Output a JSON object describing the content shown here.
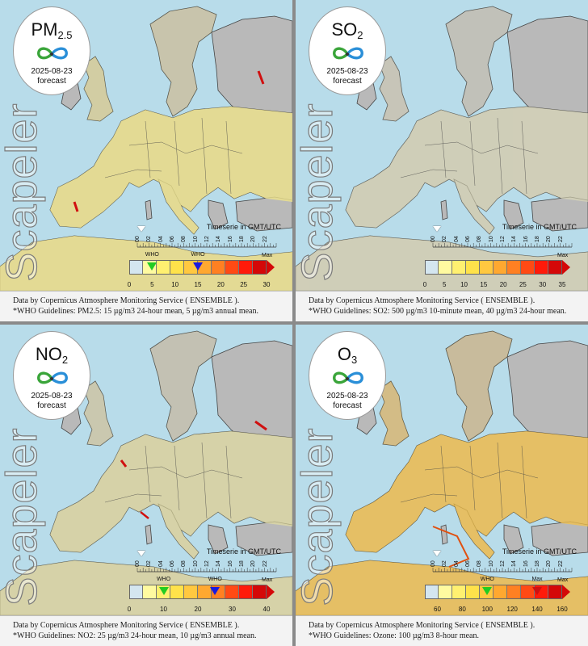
{
  "brand": "Scapeler",
  "date": "2025-08-23",
  "forecast_label": "forecast",
  "timeserie_label": "Timeserie in GMT/UTC",
  "who_label": "WHO",
  "max_label": "Max",
  "hours": [
    "00",
    "02",
    "04",
    "06",
    "08",
    "10",
    "12",
    "14",
    "16",
    "18",
    "20",
    "22"
  ],
  "credit": "Data by Copernicus Atmosphere Monitoring Service ( ENSEMBLE ).",
  "colors": {
    "sea": "#b8dcea",
    "land": "#b9b9b9",
    "border": "#444444",
    "who_green": "#22cc22",
    "who_blue": "#1a1adf",
    "who_red": "#cc1111"
  },
  "panels": [
    {
      "pollutant_main": "PM",
      "pollutant_sub": "2.5",
      "guideline": "*WHO Guidelines: PM2.5: 15 µg/m3 24-hour mean, 5 µg/m3 annual mean.",
      "ticks": [
        "0",
        "5",
        "10",
        "15",
        "20",
        "25",
        "30"
      ],
      "scale": [
        0,
        30
      ],
      "who_values": [
        {
          "value": 5,
          "color": "#22cc22"
        },
        {
          "value": 15,
          "color": "#1a1adf"
        }
      ],
      "show_max_in_who": false,
      "tint": "#eee38c",
      "tint_opacity": 0.8
    },
    {
      "pollutant_main": "SO",
      "pollutant_sub": "2",
      "guideline": "*WHO Guidelines: SO2: 500 µg/m3 10-minute mean, 40 µg/m3 24-hour mean.",
      "ticks": [
        "0",
        "5",
        "10",
        "15",
        "20",
        "25",
        "30",
        "35"
      ],
      "scale": [
        0,
        35
      ],
      "who_values": [],
      "show_max_in_who": false,
      "tint": "#dfdcb8",
      "tint_opacity": 0.6
    },
    {
      "pollutant_main": "NO",
      "pollutant_sub": "2",
      "guideline": "*WHO Guidelines: NO2: 25 µg/m3 24-hour mean, 10 µg/m3 annual mean.",
      "ticks": [
        "0",
        "10",
        "20",
        "30",
        "40"
      ],
      "scale": [
        0,
        40
      ],
      "who_values": [
        {
          "value": 10,
          "color": "#22cc22"
        },
        {
          "value": 25,
          "color": "#1a1adf"
        }
      ],
      "show_max_in_who": false,
      "tint": "#e6e0a0",
      "tint_opacity": 0.65
    },
    {
      "pollutant_main": "O",
      "pollutant_sub": "3",
      "guideline": "*WHO Guidelines: Ozone: 100 µg/m3 8-hour mean.",
      "ticks": [
        "60",
        "80",
        "100",
        "120",
        "140",
        "160"
      ],
      "scale": [
        50,
        160
      ],
      "who_values": [
        {
          "value": 100,
          "color": "#22cc22"
        },
        {
          "value": 140,
          "color": "#cc1111"
        }
      ],
      "show_max_in_who": true,
      "tint": "#f4c24a",
      "tint_opacity": 0.75
    }
  ]
}
